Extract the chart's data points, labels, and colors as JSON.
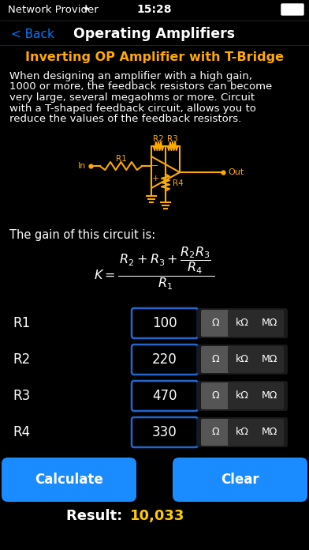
{
  "bg_color": "#000000",
  "status_color": "#ffffff",
  "status_time": "15:28",
  "status_left": "Network Provider",
  "nav_back": "< Back",
  "nav_back_color": "#007aff",
  "nav_title": "Operating Amplifiers",
  "nav_title_color": "#ffffff",
  "heading": "Inverting OP Amplifier with T-Bridge",
  "heading_color": "#ffaa00",
  "desc_lines": [
    "When designing an amplifier with a high gain,",
    "1000 or more, the feedback resistors can become",
    "very large, several megaohms or more. Circuit",
    "with a T-shaped feedback circuit, allows you to",
    "reduce the values of the feedback resistors."
  ],
  "desc_color": "#ffffff",
  "circuit_color": "#ffaa00",
  "gain_label": "The gain of this circuit is:",
  "gain_label_color": "#ffffff",
  "rows": [
    {
      "label": "R1",
      "value": "100"
    },
    {
      "label": "R2",
      "value": "220"
    },
    {
      "label": "R3",
      "value": "470"
    },
    {
      "label": "R4",
      "value": "330"
    }
  ],
  "units": [
    "Ω",
    "kΩ",
    "MΩ"
  ],
  "input_border_color": "#2266cc",
  "input_bg": "#000000",
  "unit_selected_bg": "#555555",
  "unit_bg": "#2a2a2a",
  "unit_group_bg": "#1a1a1a",
  "text_color": "#ffffff",
  "button_color": "#1a8cff",
  "button_text_color": "#ffffff",
  "button_calc": "Calculate",
  "button_clear": "Clear",
  "result_label": "Result: ",
  "result_value": "10,033",
  "result_label_color": "#ffffff",
  "result_value_color": "#ffcc00"
}
